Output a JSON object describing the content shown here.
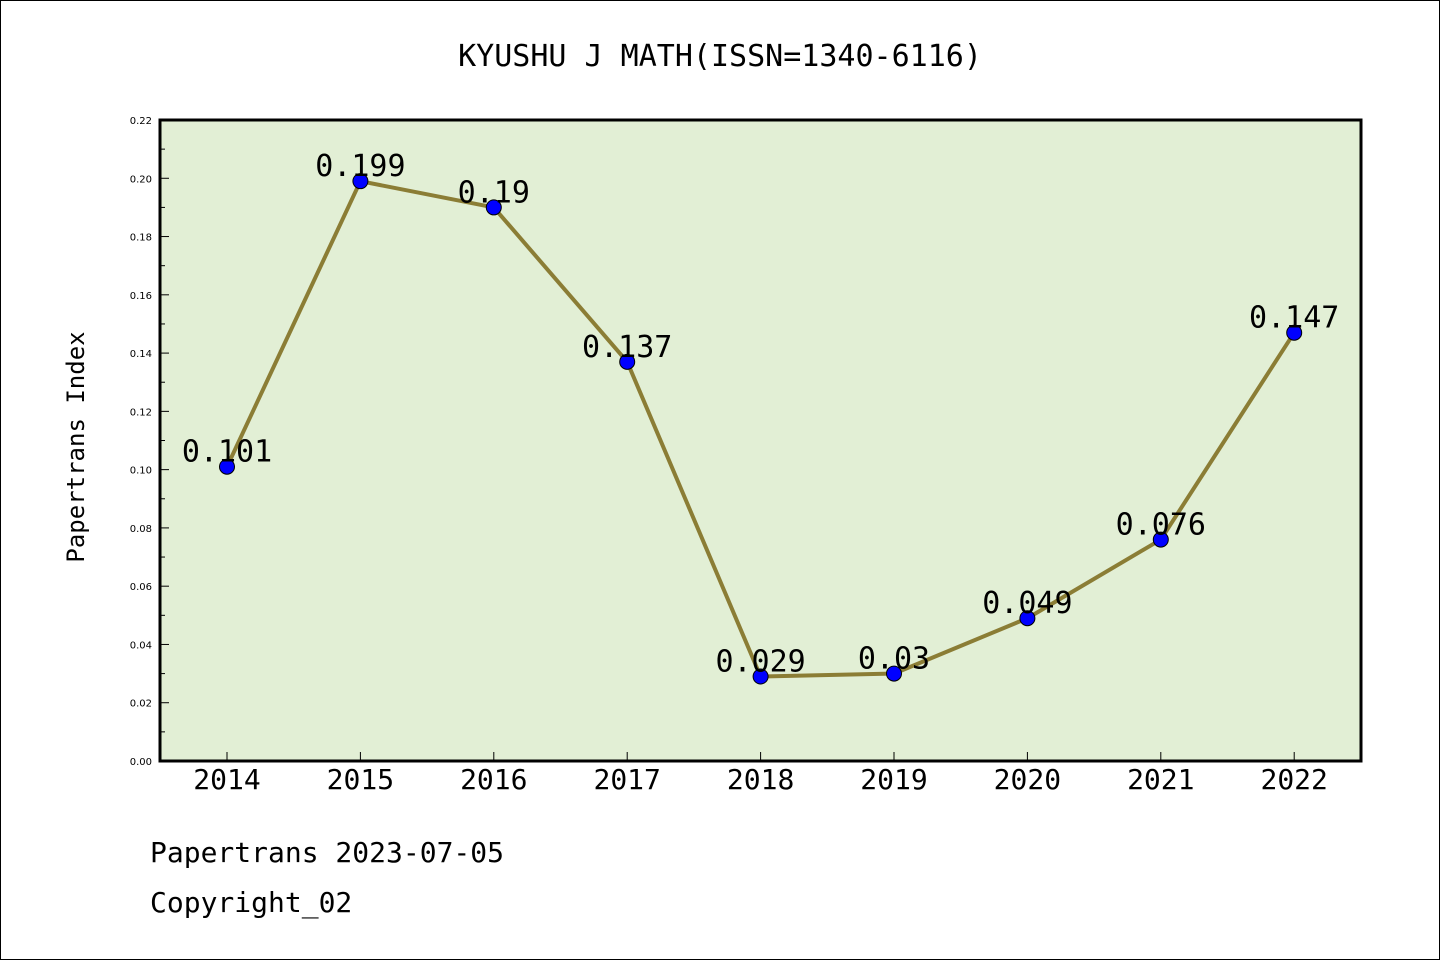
{
  "chart_data": {
    "type": "line",
    "title": "KYUSHU J MATH(ISSN=1340-6116)",
    "ylabel": "Papertrans Index",
    "xlabel": "",
    "categories": [
      "2014",
      "2015",
      "2016",
      "2017",
      "2018",
      "2019",
      "2020",
      "2021",
      "2022"
    ],
    "series": [
      {
        "values": [
          0.101,
          0.199,
          0.19,
          0.137,
          0.029,
          0.03,
          0.049,
          0.076,
          0.147
        ]
      }
    ],
    "data_labels": [
      "0.101",
      "0.199",
      "0.19",
      "0.137",
      "0.029",
      "0.03",
      "0.049",
      "0.076",
      "0.147"
    ],
    "ylim": [
      0,
      0.22
    ],
    "yticks": [
      "0.00",
      "0.02",
      "0.04",
      "0.06",
      "0.08",
      "0.10",
      "0.12",
      "0.14",
      "0.16",
      "0.18",
      "0.20",
      "0.22"
    ],
    "grid": false,
    "colors": {
      "plot_bg": "#e2efd5",
      "line": "#8b7d35",
      "marker": "#0000ff"
    }
  },
  "footer": {
    "line1": "Papertrans 2023-07-05",
    "line2": "Copyright_02"
  }
}
